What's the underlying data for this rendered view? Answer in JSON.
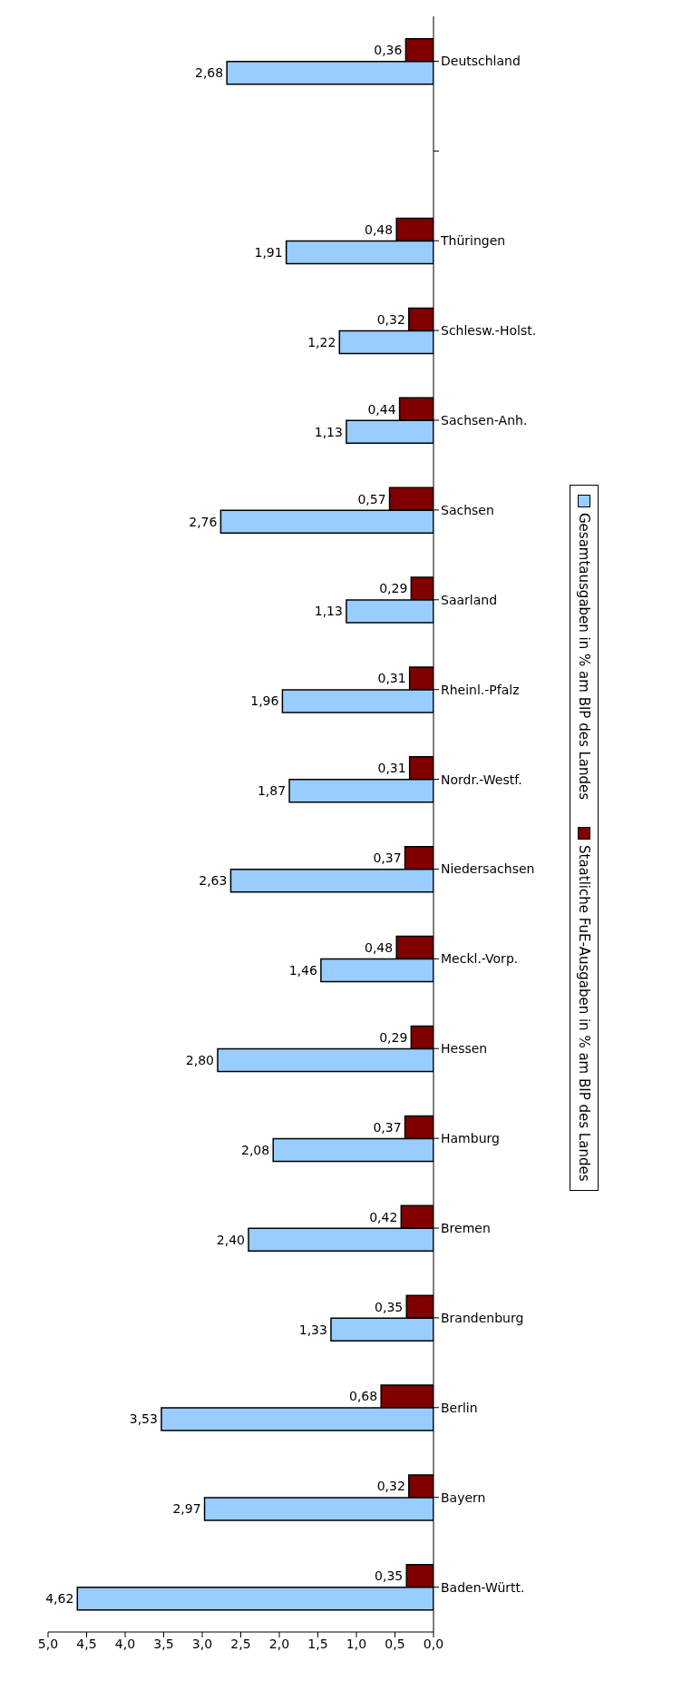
{
  "chart_data": {
    "type": "bar",
    "orientation": "horizontal",
    "categories": [
      "Deutschland",
      null,
      "Thüringen",
      "Schlesw.-Holst.",
      "Sachsen-Anh.",
      "Sachsen",
      "Saarland",
      "Rheinl.-Pfalz",
      "Nordr.-Westf.",
      "Niedersachsen",
      "Meckl.-Vorp.",
      "Hessen",
      "Hamburg",
      "Bremen",
      "Brandenburg",
      "Berlin",
      "Bayern",
      "Baden-Württ."
    ],
    "series": [
      {
        "name": "Gesamtausgaben in % am BIP des Landes",
        "color": "#99ccff",
        "values": [
          2.68,
          null,
          1.91,
          1.22,
          1.13,
          2.76,
          1.13,
          1.96,
          1.87,
          2.63,
          1.46,
          2.8,
          2.08,
          2.4,
          1.33,
          3.53,
          2.97,
          4.62
        ],
        "value_labels": [
          "2,68",
          null,
          "1,91",
          "1,22",
          "1,13",
          "2,76",
          "1,13",
          "1,96",
          "1,87",
          "2,63",
          "1,46",
          "2,80",
          "2,08",
          "2,40",
          "1,33",
          "3,53",
          "2,97",
          "4,62"
        ]
      },
      {
        "name": "Staatliche FuE-Ausgaben in % am BIP des Landes",
        "color": "#800000",
        "values": [
          0.36,
          null,
          0.48,
          0.32,
          0.44,
          0.57,
          0.29,
          0.31,
          0.31,
          0.37,
          0.48,
          0.29,
          0.37,
          0.42,
          0.35,
          0.68,
          0.32,
          0.35
        ],
        "value_labels": [
          "0,36",
          null,
          "0,48",
          "0,32",
          "0,44",
          "0,57",
          "0,29",
          "0,31",
          "0,31",
          "0,37",
          "0,48",
          "0,29",
          "0,37",
          "0,42",
          "0,35",
          "0,68",
          "0,32",
          "0,35"
        ]
      }
    ],
    "xlim": [
      5,
      0
    ],
    "xticks": [
      {
        "value": 5,
        "label": "5,0"
      },
      {
        "value": 4.5,
        "label": "4,5"
      },
      {
        "value": 4,
        "label": "4,0"
      },
      {
        "value": 3.5,
        "label": "3,5"
      },
      {
        "value": 3,
        "label": "3,0"
      },
      {
        "value": 2.5,
        "label": "2,5"
      },
      {
        "value": 2,
        "label": "2,0"
      },
      {
        "value": 1.5,
        "label": "1,5"
      },
      {
        "value": 1,
        "label": "1,0"
      },
      {
        "value": 0.5,
        "label": "0,5"
      },
      {
        "value": 0,
        "label": "0,0"
      }
    ],
    "grid": false,
    "legend": "right"
  }
}
